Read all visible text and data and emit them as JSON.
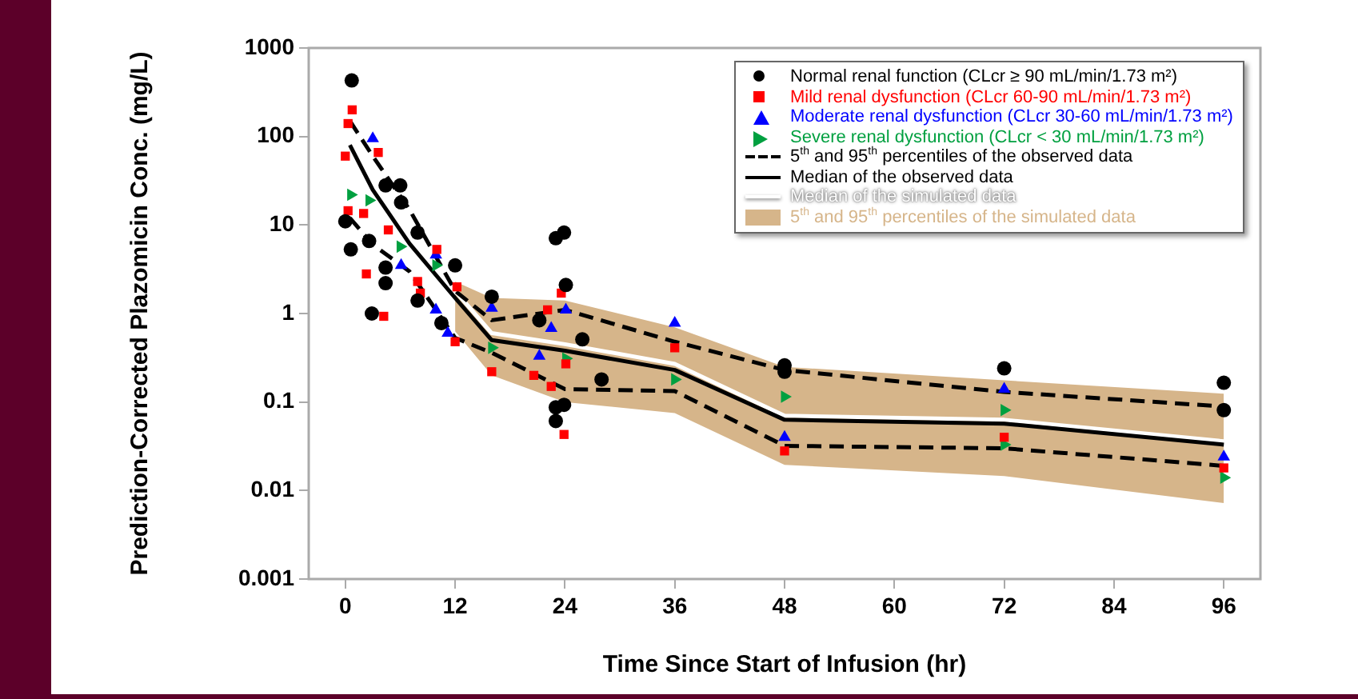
{
  "chart_data": {
    "type": "scatter",
    "xlabel": "Time Since Start of Infusion (hr)",
    "ylabel": "Prediction-Corrected Plazomicin Conc. (mg/L)",
    "log": "y",
    "xlim": [
      -4,
      100
    ],
    "xticks": [
      0,
      12,
      24,
      36,
      48,
      60,
      72,
      84,
      96
    ],
    "ylim": [
      0.001,
      1000
    ],
    "yticks": [
      0.001,
      0.01,
      0.1,
      1,
      10,
      100,
      1000
    ],
    "legend": "top right",
    "series": [
      {
        "name": "Normal renal function (CLcr ≥ 90 mL/min/1.73 m²)",
        "marker": "circle",
        "color": "#000000",
        "x": [
          0.7,
          0,
          0.6,
          4.4,
          6,
          6.1,
          2.6,
          4.4,
          4.4,
          2.9,
          7.9,
          7.9,
          12,
          10.5,
          16,
          23,
          23.9,
          24.1,
          23,
          23.9,
          23,
          28,
          21.2,
          25.9,
          48,
          48,
          72,
          96,
          96
        ],
        "values": [
          430,
          11,
          5.3,
          28,
          28,
          18,
          6.6,
          3.3,
          2.2,
          1,
          8.2,
          1.4,
          3.5,
          0.78,
          1.55,
          7.1,
          8.2,
          2.1,
          0.087,
          0.093,
          0.061,
          0.18,
          0.84,
          0.51,
          0.26,
          0.22,
          0.24,
          0.165,
          0.081
        ]
      },
      {
        "name": "Mild renal dysfunction (CLcr 60-90 mL/min/1.73 m²)",
        "marker": "square",
        "color": "#ff0000",
        "x": [
          0.75,
          0.3,
          0,
          0.3,
          3.6,
          2.3,
          4.2,
          2,
          4.7,
          7.9,
          8.2,
          10,
          12.2,
          12,
          16,
          23.6,
          22.1,
          22.5,
          23.9,
          24.1,
          20.6,
          36,
          48,
          72,
          96
        ],
        "values": [
          200,
          140,
          60,
          14.5,
          66,
          2.8,
          0.93,
          13.5,
          8.8,
          2.3,
          1.7,
          5.3,
          2,
          0.48,
          0.22,
          1.7,
          1.1,
          0.15,
          0.043,
          0.27,
          0.2,
          0.41,
          0.028,
          0.04,
          0.018
        ]
      },
      {
        "name": "Moderate renal dysfunction (CLcr 30-60 mL/min/1.73 m²)",
        "marker": "triangle",
        "color": "#0000ff",
        "x": [
          3,
          6.1,
          9.9,
          9.9,
          11.2,
          16,
          22.5,
          24.1,
          21.2,
          36,
          48,
          72,
          96
        ],
        "values": [
          95,
          3.5,
          4.6,
          1.1,
          0.6,
          1.15,
          0.68,
          1.1,
          0.33,
          0.78,
          0.04,
          0.14,
          0.024
        ]
      },
      {
        "name": "Severe renal dysfunction (CLcr < 30 mL/min/1.73 m²)",
        "marker": "triangle-right",
        "color": "#00a040",
        "x": [
          0.6,
          2.6,
          6,
          9.9,
          16,
          24.1,
          36,
          48,
          72,
          72,
          96
        ],
        "values": [
          22,
          19,
          5.7,
          3.5,
          0.41,
          0.31,
          0.18,
          0.115,
          0.081,
          0.033,
          0.014
        ]
      },
      {
        "name": "5$^{th}$ and 95$^{th}$ percentiles of the observed data",
        "type": "line",
        "line_style": "dashed",
        "color": "#000000",
        "x": [
          0.5,
          3,
          7,
          12,
          16,
          24,
          36,
          48,
          72,
          96
        ],
        "values": [
          150,
          60,
          15,
          1.8,
          0.84,
          1.1,
          0.48,
          0.23,
          0.13,
          0.089
        ]
      },
      {
        "type": "line",
        "line_style": "dashed",
        "color": "#000000",
        "x": [
          0.5,
          3,
          7,
          12,
          16,
          24,
          36,
          48,
          72,
          96
        ],
        "values": [
          12,
          6,
          3,
          0.53,
          0.36,
          0.14,
          0.133,
          0.032,
          0.03,
          0.019
        ]
      },
      {
        "name": "Median of the observed data",
        "type": "line",
        "line_style": "solid",
        "color": "#000000",
        "x": [
          0.5,
          3,
          7,
          12,
          16,
          24,
          36,
          48,
          72,
          96
        ],
        "values": [
          80,
          25,
          6.2,
          1.5,
          0.5,
          0.38,
          0.23,
          0.063,
          0.057,
          0.033
        ]
      },
      {
        "name": "Median of the simulated data",
        "type": "line",
        "line_style": "solid",
        "color": "#ffffff",
        "x": [
          0.5,
          3,
          7,
          12,
          16,
          24,
          36,
          48,
          72,
          96
        ],
        "values": [
          90,
          28,
          7,
          1.8,
          0.6,
          0.45,
          0.27,
          0.07,
          0.063,
          0.036
        ],
        "lower": [
          null,
          null,
          null,
          0.63,
          0.2,
          0.1,
          0.075,
          0.0195,
          0.0146,
          0.0072
        ],
        "upper": [
          null,
          null,
          null,
          2.3,
          1.5,
          1.4,
          0.7,
          0.25,
          0.176,
          0.124
        ]
      },
      {
        "name": "5$^{th}$ and 95$^{th}$ percentiles of the simulated data",
        "type": "area",
        "color": "#d6b58a"
      }
    ]
  }
}
